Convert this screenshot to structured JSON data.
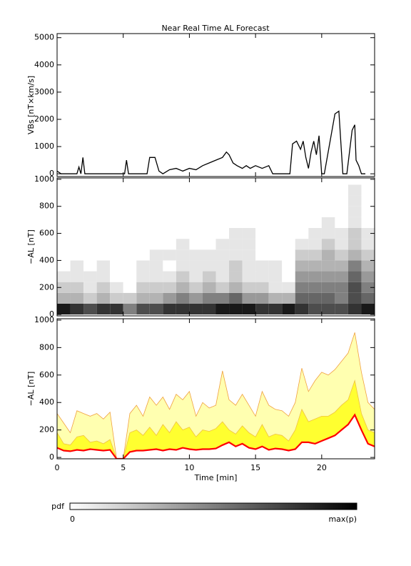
{
  "chart_data": [
    {
      "type": "line",
      "title": "Near Real Time AL Forecast",
      "ylabel": "VBs [nT×km/s]",
      "xlim": [
        0,
        24
      ],
      "xticks": [
        0,
        5,
        10,
        15,
        20
      ],
      "ylim": [
        -100,
        5150
      ],
      "yticks": [
        0,
        1000,
        2000,
        3000,
        4000,
        5000
      ],
      "x": [
        0,
        0.3,
        0.6,
        1.5,
        1.65,
        1.8,
        1.95,
        2.1,
        2.3,
        5.1,
        5.25,
        5.4,
        6.8,
        7.0,
        7.4,
        7.7,
        8.0,
        8.5,
        9.0,
        9.5,
        10.0,
        10.5,
        11.0,
        11.5,
        12.0,
        12.5,
        12.8,
        13.0,
        13.3,
        13.6,
        14.0,
        14.3,
        14.6,
        15.0,
        15.5,
        16.0,
        16.3,
        17.6,
        17.8,
        18.1,
        18.4,
        18.6,
        18.8,
        19.0,
        19.2,
        19.4,
        19.6,
        19.8,
        20.0,
        20.2,
        21.0,
        21.3,
        21.6,
        21.9,
        22.3,
        22.5,
        22.6,
        22.8,
        23.0,
        23.3
      ],
      "series": [
        {
          "color": "#000000",
          "values": [
            100,
            0,
            0,
            0,
            250,
            0,
            600,
            0,
            0,
            0,
            500,
            0,
            0,
            600,
            600,
            100,
            0,
            150,
            200,
            100,
            200,
            150,
            300,
            400,
            500,
            600,
            800,
            700,
            400,
            300,
            200,
            300,
            200,
            300,
            200,
            300,
            0,
            0,
            1100,
            1200,
            900,
            1200,
            600,
            200,
            800,
            1200,
            700,
            1400,
            0,
            0,
            2200,
            2300,
            0,
            0,
            1600,
            1800,
            500,
            300,
            0,
            0
          ]
        }
      ]
    },
    {
      "type": "heatmap",
      "ylabel": "−AL [nT]",
      "xlim": [
        0,
        24
      ],
      "xticks": [
        0,
        5,
        10,
        15,
        20
      ],
      "ylim": [
        -10,
        1010
      ],
      "yticks": [
        0,
        200,
        400,
        600,
        800,
        1000
      ],
      "xbins": [
        0,
        1,
        2,
        3,
        4,
        5,
        6,
        7,
        8,
        9,
        10,
        11,
        12,
        13,
        14,
        15,
        16,
        17,
        18,
        19,
        20,
        21,
        22,
        23,
        24
      ],
      "ybins": [
        0,
        80,
        160,
        240,
        320,
        400,
        480,
        560,
        640,
        720,
        800,
        880,
        960
      ],
      "z": [
        [
          0.9,
          0.8,
          0.7,
          0.8,
          0.8,
          0.5,
          0.7,
          0.7,
          0.8,
          0.8,
          0.8,
          0.8,
          0.9,
          0.9,
          0.9,
          0.8,
          0.8,
          0.9,
          0.8,
          0.7,
          0.7,
          0.7,
          0.8,
          0.9
        ],
        [
          0.3,
          0.3,
          0.2,
          0.3,
          0.2,
          0.2,
          0.3,
          0.3,
          0.4,
          0.5,
          0.4,
          0.5,
          0.5,
          0.6,
          0.4,
          0.4,
          0.3,
          0.3,
          0.6,
          0.6,
          0.6,
          0.5,
          0.7,
          0.6
        ],
        [
          0.2,
          0.2,
          0.1,
          0.2,
          0.1,
          0,
          0.2,
          0.2,
          0.2,
          0.3,
          0.2,
          0.3,
          0.2,
          0.3,
          0.2,
          0.2,
          0.1,
          0.1,
          0.5,
          0.5,
          0.5,
          0.5,
          0.7,
          0.5
        ],
        [
          0.1,
          0.1,
          0.1,
          0.1,
          0,
          0,
          0.1,
          0.1,
          0.1,
          0.2,
          0.1,
          0.2,
          0.1,
          0.2,
          0.1,
          0.1,
          0.1,
          0,
          0.4,
          0.4,
          0.4,
          0.4,
          0.6,
          0.4
        ],
        [
          0,
          0.1,
          0,
          0.1,
          0,
          0,
          0.1,
          0.1,
          0,
          0.1,
          0.1,
          0.1,
          0.1,
          0.2,
          0.1,
          0.1,
          0.1,
          0,
          0.3,
          0.3,
          0.3,
          0.3,
          0.5,
          0.3
        ],
        [
          0,
          0,
          0,
          0,
          0,
          0,
          0,
          0.1,
          0.1,
          0.1,
          0.1,
          0.1,
          0.1,
          0.1,
          0.1,
          0,
          0,
          0,
          0.2,
          0.2,
          0.3,
          0.2,
          0.3,
          0.2
        ],
        [
          0,
          0,
          0,
          0,
          0,
          0,
          0,
          0,
          0,
          0.1,
          0,
          0,
          0.1,
          0.1,
          0.1,
          0,
          0,
          0,
          0.1,
          0.1,
          0.2,
          0.1,
          0.2,
          0.1
        ],
        [
          0,
          0,
          0,
          0,
          0,
          0,
          0,
          0,
          0,
          0,
          0,
          0,
          0,
          0.1,
          0.1,
          0,
          0,
          0,
          0,
          0.1,
          0.1,
          0.1,
          0.2,
          0.1
        ],
        [
          0,
          0,
          0,
          0,
          0,
          0,
          0,
          0,
          0,
          0,
          0,
          0,
          0,
          0,
          0,
          0,
          0,
          0,
          0,
          0,
          0.1,
          0,
          0.1,
          0
        ],
        [
          0,
          0,
          0,
          0,
          0,
          0,
          0,
          0,
          0,
          0,
          0,
          0,
          0,
          0,
          0,
          0,
          0,
          0,
          0,
          0,
          0,
          0,
          0.1,
          0
        ],
        [
          0,
          0,
          0,
          0,
          0,
          0,
          0,
          0,
          0,
          0,
          0,
          0,
          0,
          0,
          0,
          0,
          0,
          0,
          0,
          0,
          0,
          0,
          0.1,
          0
        ],
        [
          0,
          0,
          0,
          0,
          0,
          0,
          0,
          0,
          0,
          0,
          0,
          0,
          0,
          0,
          0,
          0,
          0,
          0,
          0,
          0,
          0,
          0,
          0.1,
          0
        ]
      ],
      "colorbar": {
        "label": "pdf",
        "zlim": [
          0,
          1
        ],
        "ticks": [
          0,
          {
            "value": 1,
            "label": "max(p)"
          }
        ]
      }
    },
    {
      "type": "area",
      "ylabel": "−AL [nT]",
      "xlabel": "Time [min]",
      "xlim": [
        0,
        24
      ],
      "xticks": [
        0,
        5,
        10,
        15,
        20
      ],
      "ylim": [
        -10,
        1010
      ],
      "yticks": [
        0,
        200,
        400,
        600,
        800,
        1000
      ],
      "x": [
        0,
        0.5,
        1,
        1.5,
        2,
        2.5,
        3,
        3.5,
        4,
        4.5,
        5,
        5.5,
        6,
        6.5,
        7,
        7.5,
        8,
        8.5,
        9,
        9.5,
        10,
        10.5,
        11,
        11.5,
        12,
        12.5,
        13,
        13.5,
        14,
        14.5,
        15,
        15.5,
        16,
        16.5,
        17,
        17.5,
        18,
        18.5,
        19,
        19.5,
        20,
        20.5,
        21,
        21.5,
        22,
        22.5,
        23,
        23.5,
        24
      ],
      "series": [
        {
          "color": "#ffffb0",
          "edge_color": "#f0a040",
          "values": [
            320,
            250,
            180,
            340,
            320,
            300,
            320,
            280,
            330,
            -10,
            -10,
            320,
            380,
            300,
            440,
            380,
            440,
            350,
            460,
            420,
            480,
            300,
            400,
            360,
            380,
            630,
            420,
            380,
            460,
            380,
            300,
            480,
            380,
            350,
            340,
            300,
            400,
            650,
            480,
            560,
            620,
            600,
            640,
            700,
            760,
            910,
            620,
            400,
            350
          ]
        },
        {
          "color": "#ffff30",
          "edge_color": "#f0c040",
          "values": [
            180,
            100,
            90,
            150,
            160,
            110,
            120,
            100,
            130,
            -10,
            -10,
            180,
            200,
            160,
            220,
            160,
            240,
            180,
            260,
            200,
            220,
            150,
            200,
            190,
            210,
            260,
            200,
            170,
            230,
            180,
            150,
            240,
            150,
            170,
            160,
            120,
            200,
            350,
            260,
            280,
            300,
            300,
            330,
            380,
            420,
            560,
            320,
            200,
            180
          ]
        },
        {
          "color": "#ff0000",
          "values": [
            70,
            50,
            45,
            55,
            50,
            60,
            55,
            50,
            55,
            -10,
            -10,
            40,
            50,
            50,
            55,
            60,
            50,
            60,
            55,
            70,
            60,
            55,
            60,
            60,
            65,
            90,
            110,
            80,
            100,
            70,
            60,
            80,
            55,
            65,
            60,
            50,
            60,
            110,
            110,
            100,
            120,
            140,
            160,
            200,
            240,
            310,
            200,
            100,
            80
          ]
        }
      ]
    }
  ]
}
